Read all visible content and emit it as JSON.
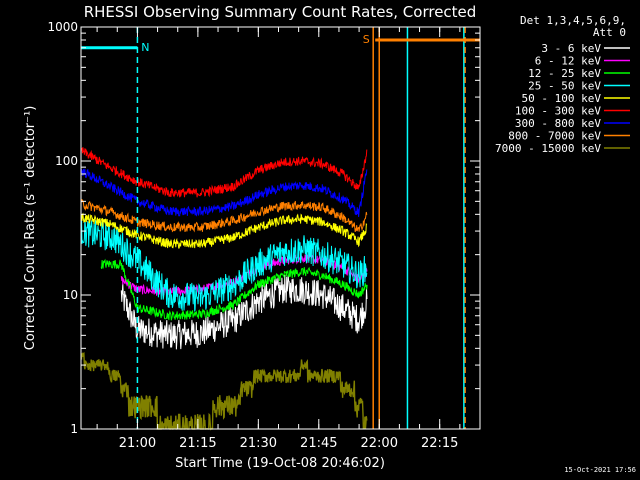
{
  "chart_data": {
    "type": "line",
    "title": "RHESSI Observing Summary Count Rates, Corrected",
    "xlabel": "Start Time (19-Oct-08 20:46:02)",
    "ylabel": "Corrected Count Rate (s⁻¹ detector⁻¹)",
    "y_scale": "log",
    "ylim": [
      1,
      1000
    ],
    "xlim_min": [
      0,
      99
    ],
    "x_unit": "minutes after 20:46:02",
    "x_ticks": [
      {
        "min": 14,
        "label": "21:00"
      },
      {
        "min": 29,
        "label": "21:15"
      },
      {
        "min": 44,
        "label": "21:30"
      },
      {
        "min": 59,
        "label": "21:45"
      },
      {
        "min": 74,
        "label": "22:00"
      },
      {
        "min": 89,
        "label": "22:15"
      }
    ],
    "y_ticks": [
      {
        "value": 1,
        "label": "1"
      },
      {
        "value": 10,
        "label": "10"
      },
      {
        "value": 100,
        "label": "100"
      },
      {
        "value": 1000,
        "label": "1000"
      }
    ],
    "legend_header": [
      "Det 1,3,4,5,6,9,",
      "Att 0"
    ],
    "legend_position": "right",
    "timestamp": "15-Oct-2021 17:56",
    "flags": [
      {
        "label": "N",
        "color": "#00ffff",
        "start_min": 0,
        "end_min": 14,
        "level": 700
      },
      {
        "label": "S",
        "color": "#ff8000",
        "start_min": 73,
        "end_min": 99,
        "level": 800
      }
    ],
    "region_lines": [
      {
        "min": 14,
        "color": "#00ffff",
        "style": "dashed"
      },
      {
        "min": 72.5,
        "color": "#ff8000",
        "style": "solid"
      },
      {
        "min": 74,
        "color": "#ff8000",
        "style": "solid"
      },
      {
        "min": 81,
        "color": "#00ffff",
        "style": "solid"
      },
      {
        "min": 95,
        "color": "#00ffff",
        "style": "solid"
      },
      {
        "min": 95.3,
        "color": "#ff8000",
        "style": "dashed"
      }
    ],
    "series": [
      {
        "name": "3 - 6 keV",
        "color": "#ffffff",
        "x": [
          10,
          14,
          22,
          30,
          38,
          44,
          50,
          55,
          60,
          65,
          69,
          71
        ],
        "y": [
          10,
          5.5,
          5,
          5.2,
          6.5,
          9,
          11,
          11,
          10,
          8,
          6.5,
          9
        ]
      },
      {
        "name": "6 - 12 keV",
        "color": "#ff00ff",
        "x": [
          10,
          14,
          22,
          30,
          38,
          44,
          50,
          55,
          60,
          65,
          69,
          71
        ],
        "y": [
          13,
          11,
          10.5,
          11,
          12.5,
          16,
          18,
          19,
          18,
          16,
          13,
          15
        ]
      },
      {
        "name": "12 - 25 keV",
        "color": "#00ff00",
        "x": [
          5,
          10,
          14,
          22,
          30,
          38,
          44,
          50,
          55,
          60,
          65,
          69,
          71
        ],
        "y": [
          17,
          17,
          8,
          7,
          7.2,
          8.5,
          12,
          14,
          15,
          14,
          12,
          10,
          12
        ]
      },
      {
        "name": "25 - 50 keV",
        "color": "#00ffff",
        "x": [
          0,
          4,
          8,
          14,
          22,
          30,
          38,
          44,
          50,
          55,
          60,
          65,
          69,
          71
        ],
        "y": [
          30,
          28,
          27,
          18,
          10,
          9.5,
          12,
          17,
          21,
          22,
          20,
          17,
          14,
          16
        ]
      },
      {
        "name": "50 - 100 keV",
        "color": "#ffff00",
        "x": [
          0,
          7,
          14,
          22,
          30,
          38,
          44,
          50,
          55,
          60,
          65,
          69,
          71
        ],
        "y": [
          38,
          34,
          28,
          24,
          24,
          27,
          32,
          36,
          37,
          35,
          30,
          25,
          32
        ]
      },
      {
        "name": "100 - 300 keV",
        "color": "#ff0000",
        "x": [
          0,
          7,
          14,
          22,
          30,
          38,
          44,
          50,
          55,
          60,
          65,
          69,
          71
        ],
        "y": [
          120,
          90,
          70,
          58,
          58,
          65,
          85,
          98,
          100,
          95,
          80,
          62,
          120
        ]
      },
      {
        "name": "300 - 800 keV",
        "color": "#0000ff",
        "x": [
          0,
          7,
          14,
          22,
          30,
          38,
          44,
          50,
          55,
          60,
          65,
          69,
          71
        ],
        "y": [
          85,
          65,
          50,
          42,
          42,
          46,
          56,
          64,
          66,
          62,
          52,
          41,
          90
        ]
      },
      {
        "name": "800 - 7000 keV",
        "color": "#ff8000",
        "x": [
          0,
          7,
          14,
          22,
          30,
          38,
          44,
          50,
          55,
          60,
          65,
          69,
          71
        ],
        "y": [
          48,
          42,
          35,
          32,
          32,
          36,
          42,
          46,
          47,
          45,
          38,
          30,
          40
        ]
      },
      {
        "name": "7000 - 15000 keV",
        "color": "#808000",
        "x": [
          0,
          5,
          9,
          12,
          17,
          25,
          35,
          40,
          45,
          50,
          55,
          60,
          65,
          69,
          71
        ],
        "y": [
          3.3,
          3,
          2.5,
          1.7,
          1.3,
          1.1,
          1.3,
          1.8,
          2.7,
          2.4,
          2.8,
          2.6,
          2.2,
          1.6,
          1
        ]
      }
    ]
  }
}
